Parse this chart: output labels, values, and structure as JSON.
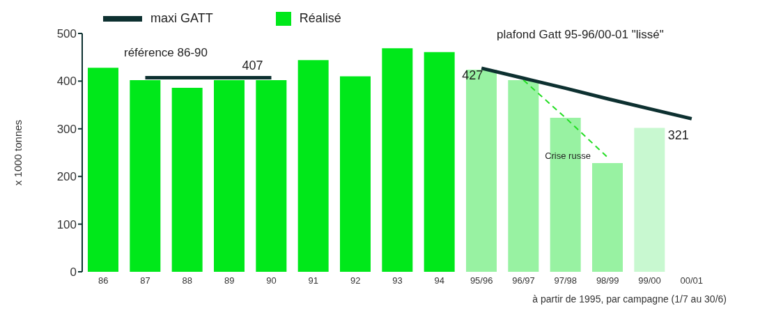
{
  "chart_data": {
    "type": "bar",
    "xlabel": "à partir de 1995, par campagne (1/7 au 30/6)",
    "ylabel": "x 1000 tonnes",
    "categories": [
      "86",
      "87",
      "88",
      "89",
      "90",
      "91",
      "92",
      "93",
      "94",
      "95/96",
      "96/97",
      "97/98",
      "98/99",
      "99/00",
      "00/01"
    ],
    "series": [
      {
        "name": "Réalisé",
        "color": "#00e81a",
        "colors": [
          "#00e81a",
          "#00e81a",
          "#00e81a",
          "#00e81a",
          "#00e81a",
          "#00e81a",
          "#00e81a",
          "#00e81a",
          "#00e81a",
          "#98f2a2",
          "#98f2a2",
          "#98f2a2",
          "#98f2a2",
          "#c8f8d0",
          "#c8f8d0"
        ],
        "values": [
          428,
          402,
          386,
          402,
          402,
          444,
          410,
          469,
          461,
          424,
          402,
          323,
          228,
          302,
          null
        ]
      },
      {
        "name": "maxi GATT",
        "type": "line",
        "color": "#0d3030",
        "values": [
          null,
          407,
          407,
          407,
          407,
          null,
          null,
          null,
          null,
          null,
          null,
          null,
          null,
          null,
          null
        ]
      },
      {
        "type": "line",
        "color": "#0d3030",
        "values": [
          null,
          null,
          null,
          null,
          null,
          null,
          null,
          null,
          null,
          427,
          406,
          385,
          363,
          342,
          321
        ]
      },
      {
        "type": "line",
        "color": "#22dd22",
        "line_style": "dashed",
        "values": [
          null,
          null,
          null,
          null,
          null,
          null,
          null,
          null,
          null,
          null,
          402,
          323,
          240,
          null,
          null
        ]
      }
    ],
    "ylim": [
      0,
      500
    ],
    "yticks": [
      0,
      100,
      200,
      300,
      400,
      500
    ],
    "legend": "top",
    "marker": "none",
    "annotations": [
      "référence 86-90",
      "plafond Gatt 95-96/00-01 \"lissé\"",
      {
        "text": "407",
        "x": "90",
        "y": 407
      },
      {
        "text": "427",
        "x": "95/96",
        "y": 427
      },
      {
        "text": "321",
        "x": "00/01",
        "y": 321
      },
      {
        "text": "Crise russe",
        "x": "98/99",
        "y": 245
      }
    ]
  }
}
